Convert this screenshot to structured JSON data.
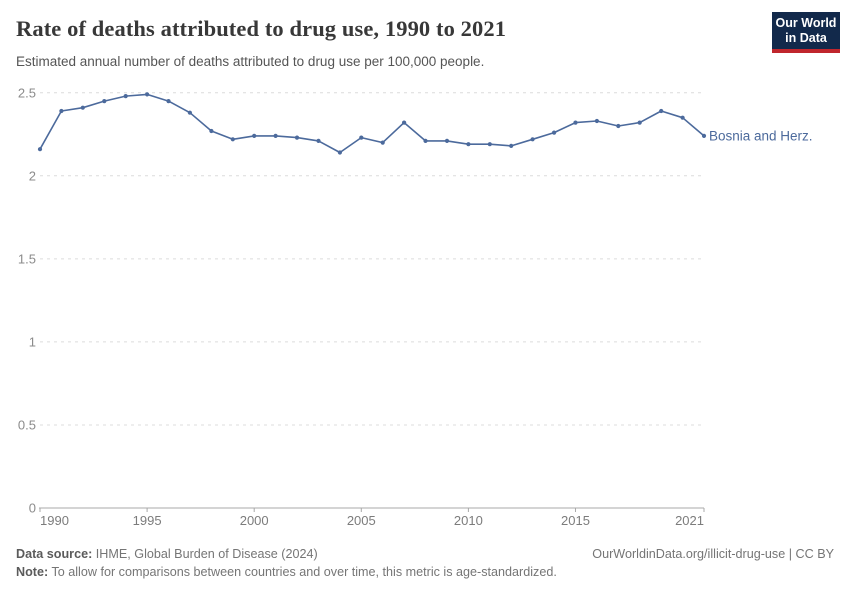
{
  "header": {
    "title": "Rate of deaths attributed to drug use, 1990 to 2021",
    "subtitle": "Estimated annual number of deaths attributed to drug use per 100,000 people.",
    "logo": {
      "line1": "Our World",
      "line2": "in Data",
      "bg_color": "#12294B",
      "accent_color": "#C0262D"
    }
  },
  "chart_data": {
    "type": "line",
    "title": "Rate of deaths attributed to drug use, 1990 to 2021",
    "x": [
      1990,
      1991,
      1992,
      1993,
      1994,
      1995,
      1996,
      1997,
      1998,
      1999,
      2000,
      2001,
      2002,
      2003,
      2004,
      2005,
      2006,
      2007,
      2008,
      2009,
      2010,
      2011,
      2012,
      2013,
      2014,
      2015,
      2016,
      2017,
      2018,
      2019,
      2020,
      2021
    ],
    "series": [
      {
        "name": "Bosnia and Herz.",
        "color": "#4C6A9C",
        "values": [
          2.16,
          2.39,
          2.41,
          2.45,
          2.48,
          2.49,
          2.45,
          2.38,
          2.27,
          2.22,
          2.24,
          2.24,
          2.23,
          2.21,
          2.14,
          2.23,
          2.2,
          2.32,
          2.21,
          2.21,
          2.19,
          2.19,
          2.18,
          2.22,
          2.26,
          2.32,
          2.33,
          2.3,
          2.32,
          2.39,
          2.35,
          2.24
        ]
      }
    ],
    "xlabel": "",
    "ylabel": "",
    "xlim": [
      1990,
      2021
    ],
    "ylim": [
      0,
      2.5
    ],
    "x_tick_values": [
      1990,
      1995,
      2000,
      2005,
      2010,
      2015,
      2021
    ],
    "x_tick_labels": [
      "1990",
      "1995",
      "2000",
      "2005",
      "2010",
      "2015",
      "2021"
    ],
    "y_tick_values": [
      0,
      0.5,
      1,
      1.5,
      2,
      2.5
    ],
    "y_tick_labels": [
      "0",
      "0.5",
      "1",
      "1.5",
      "2",
      "2.5"
    ],
    "grid": "horizontal-dashed",
    "gridline_color": "#dcdcdc",
    "axis_color": "#a8a8a8",
    "tick_label_color": "#7c7c7c",
    "legend_position": "end-of-line-label"
  },
  "footer": {
    "datasource_label": "Data source:",
    "datasource_text": " IHME, Global Burden of Disease (2024)",
    "attribution": "OurWorldinData.org/illicit-drug-use | CC BY",
    "note_label": "Note:",
    "note_text": " To allow for comparisons between countries and over time, this metric is age-standardized."
  }
}
